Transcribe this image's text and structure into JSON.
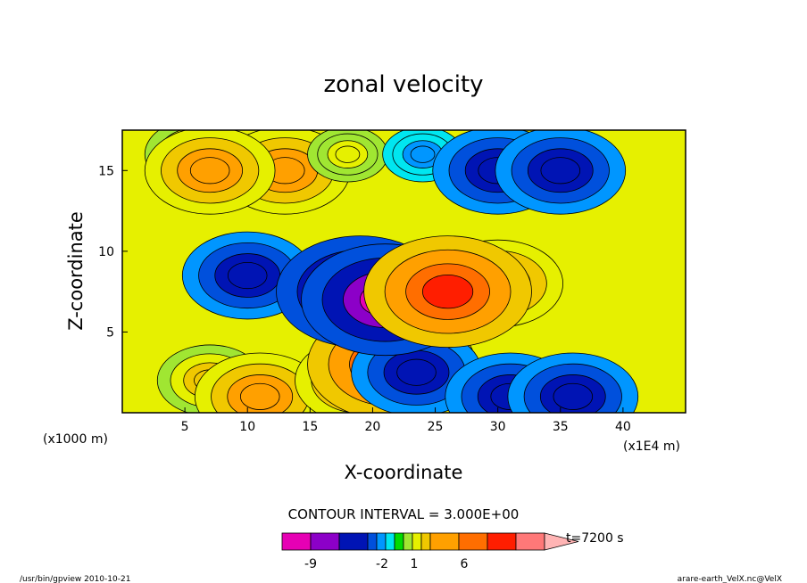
{
  "chart_data": {
    "type": "heatmap",
    "title": "zonal velocity",
    "xlabel": "X-coordinate",
    "ylabel": "Z-coordinate",
    "x_unit": "(x1000 m)",
    "x_scale_note": "(x1E4 m)",
    "xlim": [
      0,
      45
    ],
    "ylim": [
      0,
      17.5
    ],
    "x_ticks": [
      5,
      10,
      15,
      20,
      25,
      30,
      35,
      40
    ],
    "y_ticks": [
      5,
      10,
      15
    ],
    "contour_interval_label": "CONTOUR INTERVAL = 3.000E+00",
    "time_label": "t=7200 s",
    "colorbar": {
      "colors": [
        "#e600b4",
        "#8c00c8",
        "#0014b4",
        "#0050dc",
        "#0096ff",
        "#00e6f0",
        "#00dc00",
        "#a0e632",
        "#e6f000",
        "#f0c800",
        "#ffa000",
        "#ff6e00",
        "#ff1e00",
        "#ff7878",
        "#ffb4b4"
      ],
      "tick_labels": [
        "-9",
        "-2",
        "1",
        "6"
      ]
    },
    "regions": [
      {
        "x": 7,
        "z": 2,
        "value": 4
      },
      {
        "x": 11,
        "z": 1,
        "value": 6
      },
      {
        "x": 19,
        "z": 2,
        "value": 6
      },
      {
        "x": 21.5,
        "z": 3,
        "value": 9
      },
      {
        "x": 23.5,
        "z": 2.5,
        "value": -6
      },
      {
        "x": 31,
        "z": 1,
        "value": -6
      },
      {
        "x": 36,
        "z": 1,
        "value": -6
      },
      {
        "x": 10,
        "z": 8.5,
        "value": -6
      },
      {
        "x": 18,
        "z": 7.5,
        "value": -6
      },
      {
        "x": 19,
        "z": 7.5,
        "value": -9
      },
      {
        "x": 21,
        "z": 7,
        "value": -9
      },
      {
        "x": 30,
        "z": 8,
        "value": 6
      },
      {
        "x": 26,
        "z": 7.5,
        "value": 9
      },
      {
        "x": 6,
        "z": 16,
        "value": 4
      },
      {
        "x": 13,
        "z": 15,
        "value": 6
      },
      {
        "x": 7,
        "z": 15,
        "value": 6
      },
      {
        "x": 18,
        "z": 16,
        "value": 2
      },
      {
        "x": 24,
        "z": 16,
        "value": -2
      },
      {
        "x": 30,
        "z": 15,
        "value": -6
      },
      {
        "x": 35,
        "z": 15,
        "value": -6
      }
    ]
  },
  "footer": {
    "left": "/usr/bin/gpview  2010-10-21",
    "right": "arare-earth_VelX.nc@VelX"
  }
}
